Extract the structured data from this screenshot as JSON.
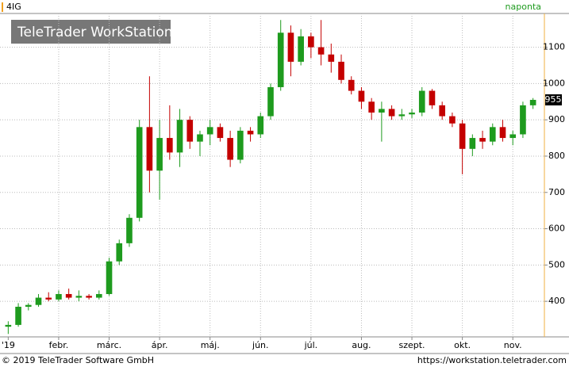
{
  "chart_data": {
    "type": "candlestick",
    "title": "4IG",
    "period": "naponta",
    "watermark": "TeleTrader WorkStation",
    "categories": [
      "'19",
      null,
      null,
      null,
      null,
      "febr.",
      null,
      null,
      null,
      null,
      "márc.",
      null,
      null,
      null,
      null,
      "ápr.",
      null,
      null,
      null,
      null,
      "máj.",
      null,
      null,
      null,
      null,
      "jún.",
      null,
      null,
      null,
      null,
      "júl.",
      null,
      null,
      null,
      null,
      "aug.",
      null,
      null,
      null,
      null,
      "szept.",
      null,
      null,
      null,
      null,
      "okt.",
      null,
      null,
      null,
      null,
      "nov.",
      null,
      null
    ],
    "open": [
      330,
      335,
      385,
      390,
      410,
      405,
      420,
      410,
      415,
      410,
      420,
      510,
      560,
      630,
      880,
      760,
      850,
      810,
      900,
      840,
      860,
      880,
      850,
      790,
      870,
      860,
      910,
      990,
      1140,
      1060,
      1130,
      1100,
      1080,
      1060,
      1010,
      980,
      950,
      920,
      930,
      910,
      915,
      920,
      980,
      940,
      910,
      890,
      820,
      850,
      840,
      880,
      850,
      860,
      940
    ],
    "high": [
      345,
      395,
      395,
      420,
      425,
      430,
      435,
      430,
      420,
      430,
      520,
      570,
      640,
      900,
      1020,
      900,
      940,
      930,
      910,
      870,
      900,
      890,
      870,
      880,
      880,
      920,
      1000,
      1175,
      1160,
      1150,
      1140,
      1175,
      1110,
      1080,
      1020,
      990,
      960,
      950,
      940,
      930,
      930,
      990,
      985,
      950,
      920,
      900,
      860,
      870,
      890,
      900,
      870,
      950,
      960
    ],
    "low": [
      310,
      330,
      375,
      385,
      400,
      400,
      405,
      400,
      405,
      405,
      415,
      500,
      550,
      620,
      700,
      680,
      790,
      770,
      820,
      800,
      830,
      840,
      770,
      780,
      840,
      850,
      900,
      980,
      1020,
      1050,
      1070,
      1050,
      1030,
      1000,
      970,
      930,
      900,
      840,
      900,
      900,
      905,
      910,
      930,
      900,
      880,
      750,
      800,
      820,
      830,
      840,
      830,
      850,
      930
    ],
    "close": [
      335,
      385,
      390,
      410,
      405,
      420,
      410,
      415,
      410,
      420,
      510,
      560,
      630,
      880,
      760,
      850,
      810,
      900,
      840,
      860,
      880,
      850,
      790,
      870,
      860,
      910,
      990,
      1140,
      1060,
      1130,
      1100,
      1080,
      1060,
      1010,
      980,
      950,
      920,
      930,
      910,
      915,
      920,
      980,
      940,
      910,
      890,
      820,
      850,
      840,
      880,
      850,
      860,
      940,
      955
    ],
    "up_color": "#1e9b1e",
    "down_color": "#c40000",
    "ylim": [
      302,
      1193
    ],
    "yticks": [
      400,
      500,
      600,
      700,
      800,
      900,
      1000,
      1100
    ],
    "grid": true
  },
  "footer": {
    "copyright": "© 2019 TeleTrader Software GmbH",
    "url": "https://workstation.teletrader.com"
  }
}
